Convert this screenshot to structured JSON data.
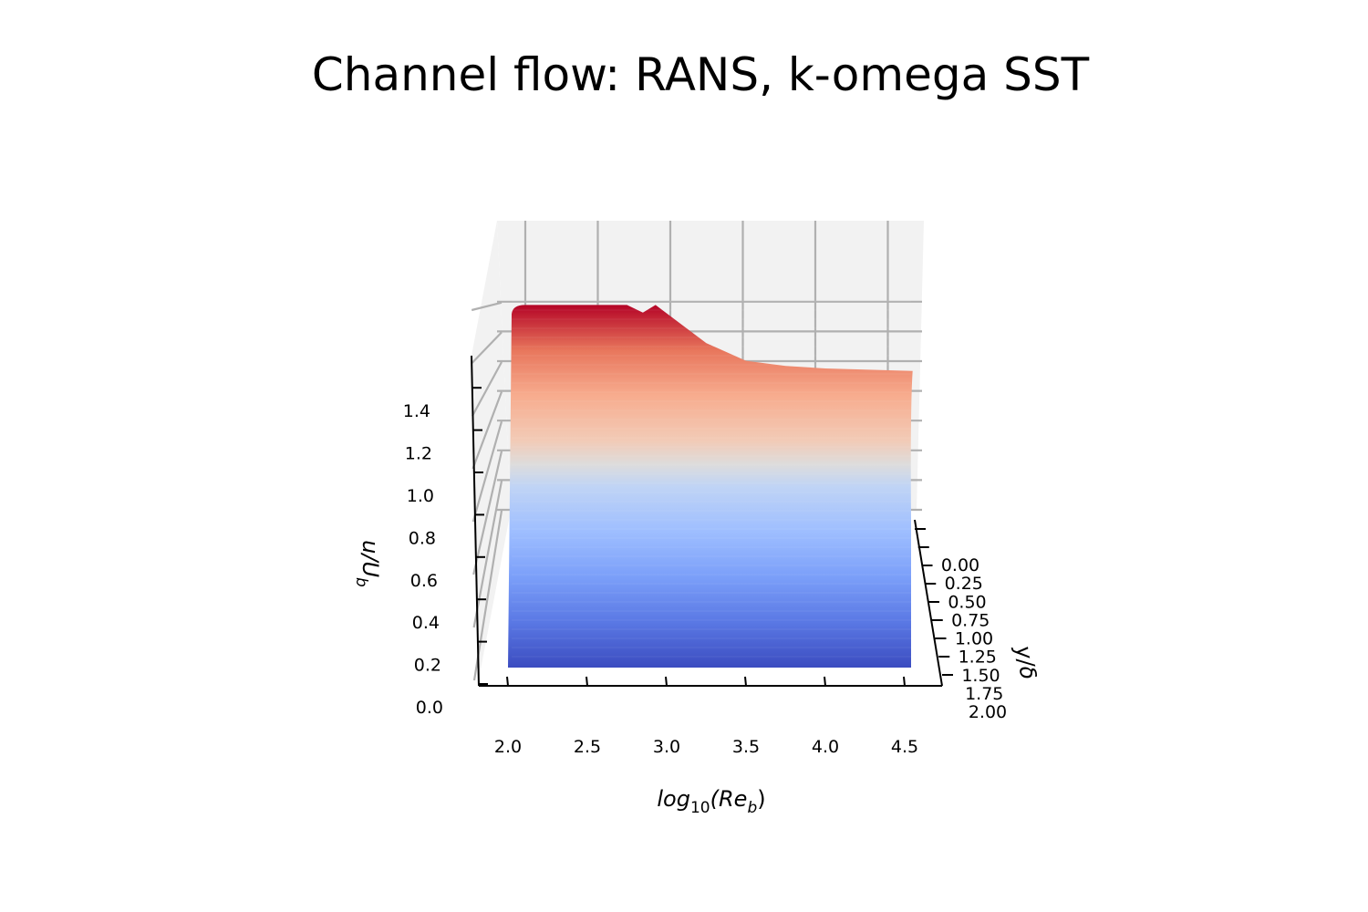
{
  "chart_data": {
    "type": "surface",
    "title": "Channel flow: RANS, k-omega SST",
    "colormap": "coolwarm",
    "axes": {
      "x": {
        "label": "log10(Reb)",
        "label_base": "log",
        "label_sub1": "10",
        "label_mid": "(Re",
        "label_sub2": "b",
        "label_end": ")",
        "ticks": [
          2.0,
          2.5,
          3.0,
          3.5,
          4.0,
          4.5
        ],
        "tick_labels": [
          "2.0",
          "2.5",
          "3.0",
          "3.5",
          "4.0",
          "4.5"
        ]
      },
      "y": {
        "label": "y/δ",
        "ticks": [
          0.0,
          0.25,
          0.5,
          0.75,
          1.0,
          1.25,
          1.5,
          1.75,
          2.0
        ],
        "tick_labels": [
          "0.00",
          "0.25",
          "0.50",
          "0.75",
          "1.00",
          "1.25",
          "1.50",
          "1.75",
          "2.00"
        ]
      },
      "z": {
        "label": "u/Ub",
        "label_base": "u/U",
        "label_sub": "b",
        "ticks": [
          0.0,
          0.2,
          0.4,
          0.6,
          0.8,
          1.0,
          1.2,
          1.4
        ],
        "tick_labels": [
          "0.0",
          "0.2",
          "0.4",
          "0.6",
          "0.8",
          "1.0",
          "1.2",
          "1.4"
        ],
        "range": [
          0.0,
          1.6
        ]
      }
    },
    "centerline_velocity": {
      "log10_Reb": [
        2.05,
        2.5,
        2.75,
        2.85,
        2.93,
        3.25,
        3.5,
        3.75,
        4.0,
        4.55
      ],
      "u_over_Ub": [
        1.5,
        1.5,
        1.5,
        1.47,
        1.5,
        1.35,
        1.28,
        1.26,
        1.25,
        1.24
      ]
    },
    "wall_velocity_u_over_Ub": 0.0,
    "grid": true
  }
}
